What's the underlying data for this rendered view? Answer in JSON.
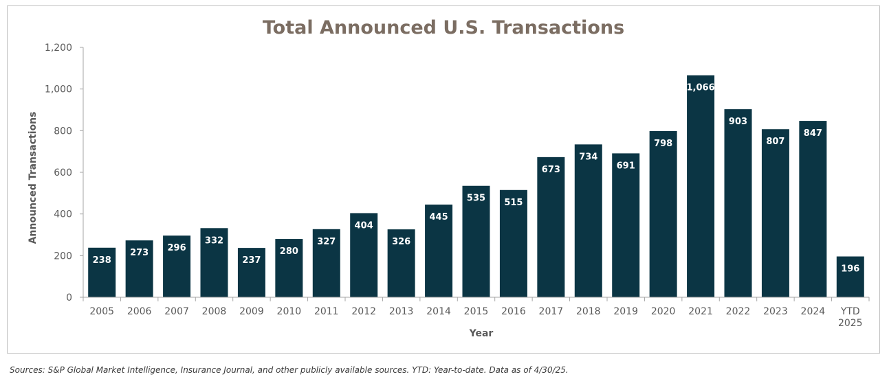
{
  "chart_data": {
    "type": "bar",
    "title": "Total Announced U.S. Transactions",
    "xlabel": "Year",
    "ylabel": "Announced Transactions",
    "ylim": [
      0,
      1200
    ],
    "yticks": [
      0,
      200,
      400,
      600,
      800,
      1000,
      1200
    ],
    "ytick_labels": [
      "0",
      "200",
      "400",
      "600",
      "800",
      "1,000",
      "1,200"
    ],
    "categories": [
      "2005",
      "2006",
      "2007",
      "2008",
      "2009",
      "2010",
      "2011",
      "2012",
      "2013",
      "2014",
      "2015",
      "2016",
      "2017",
      "2018",
      "2019",
      "2020",
      "2021",
      "2022",
      "2023",
      "2024",
      "YTD 2025"
    ],
    "values": [
      238,
      273,
      296,
      332,
      237,
      280,
      327,
      404,
      326,
      445,
      535,
      515,
      673,
      734,
      691,
      798,
      1066,
      903,
      807,
      847,
      196
    ],
    "value_labels": [
      "238",
      "273",
      "296",
      "332",
      "237",
      "280",
      "327",
      "404",
      "326",
      "445",
      "535",
      "515",
      "673",
      "734",
      "691",
      "798",
      "1,066",
      "903",
      "807",
      "847",
      "196"
    ],
    "bar_color": "#0b3544",
    "grid": false,
    "legend": "none"
  },
  "source_note": "Sources: S&P Global Market Intelligence, Insurance Journal, and other publicly available sources. YTD: Year-to-date. Data as of 4/30/25."
}
